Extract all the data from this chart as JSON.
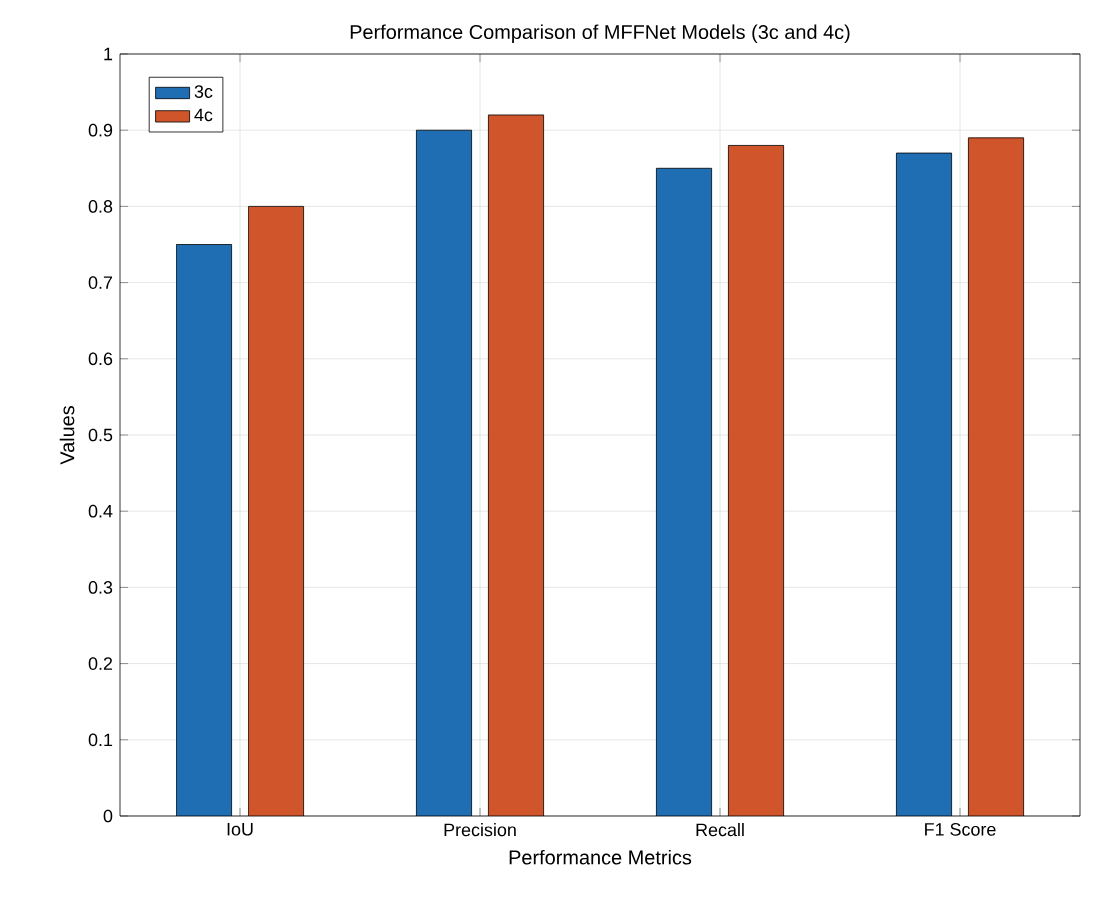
{
  "chart_data": {
    "type": "bar",
    "title": "Performance Comparison of MFFNet Models (3c and 4c)",
    "xlabel": "Performance Metrics",
    "ylabel": "Values",
    "categories": [
      "IoU",
      "Precision",
      "Recall",
      "F1 Score"
    ],
    "series": [
      {
        "name": "3c",
        "color": "#1f6db3",
        "values": [
          0.75,
          0.9,
          0.85,
          0.87
        ]
      },
      {
        "name": "4c",
        "color": "#d0552b",
        "values": [
          0.8,
          0.92,
          0.88,
          0.89
        ]
      }
    ],
    "ylim": [
      0,
      1
    ],
    "yticks": [
      0,
      0.1,
      0.2,
      0.3,
      0.4,
      0.5,
      0.6,
      0.7,
      0.8,
      0.9,
      1
    ],
    "grid": true,
    "legend": "top left"
  }
}
